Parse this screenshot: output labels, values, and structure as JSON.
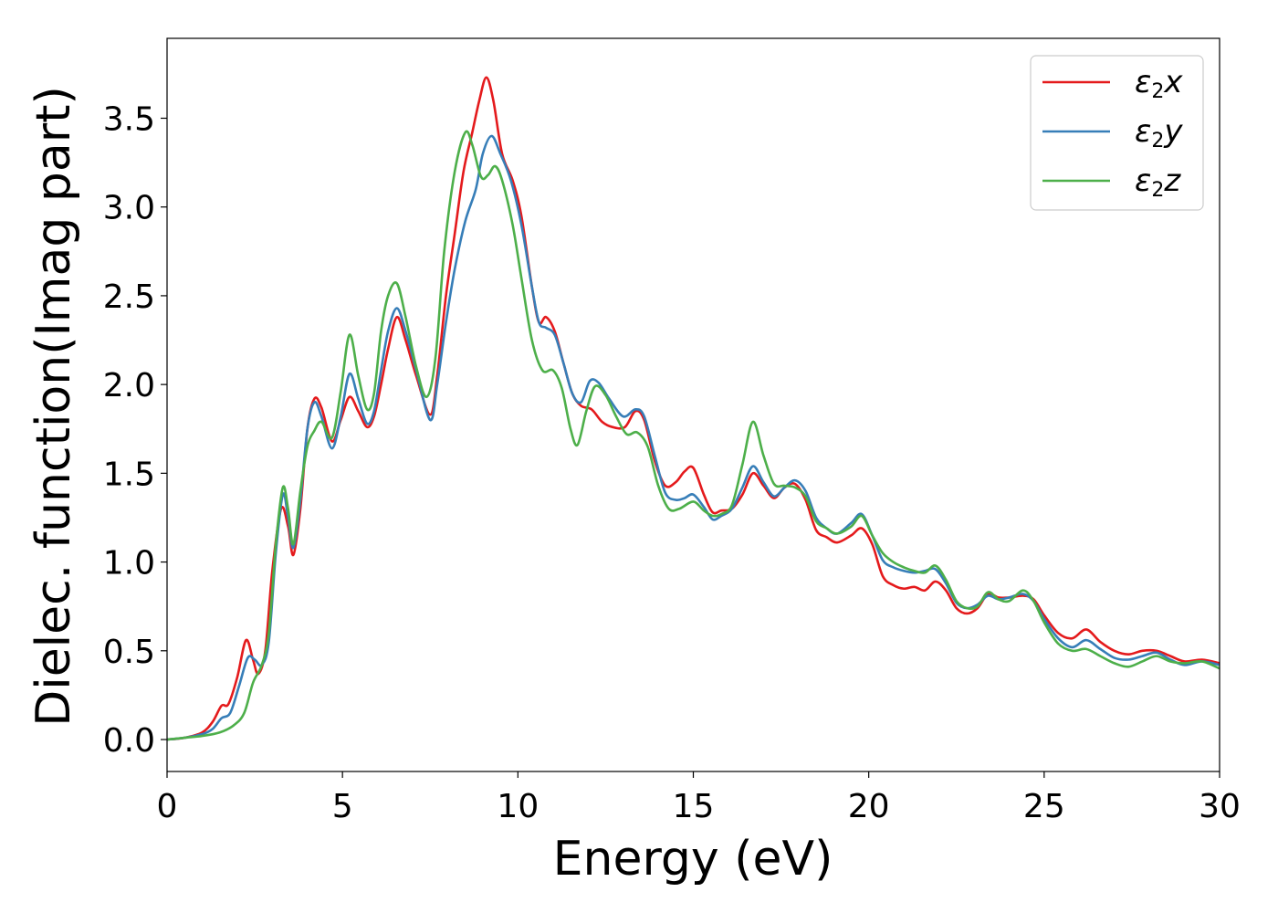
{
  "chart_data": {
    "type": "line",
    "xlabel": "Energy (eV)",
    "ylabel": "Dielec. function(Imag part)",
    "xlim": [
      0,
      30
    ],
    "ylim": [
      -0.18,
      3.95
    ],
    "xticks": [
      0,
      5,
      10,
      15,
      20,
      25,
      30
    ],
    "yticks": [
      0.0,
      0.5,
      1.0,
      1.5,
      2.0,
      2.5,
      3.0,
      3.5
    ],
    "grid": false,
    "legend": "top-right",
    "series": [
      {
        "name_main": "ε",
        "name_sub": "2",
        "name_tail": "x",
        "color": "#e41a1c",
        "points": [
          [
            0,
            0
          ],
          [
            0.5,
            0.01
          ],
          [
            1.0,
            0.04
          ],
          [
            1.3,
            0.1
          ],
          [
            1.55,
            0.19
          ],
          [
            1.75,
            0.2
          ],
          [
            2.0,
            0.35
          ],
          [
            2.25,
            0.56
          ],
          [
            2.45,
            0.45
          ],
          [
            2.6,
            0.37
          ],
          [
            2.8,
            0.5
          ],
          [
            3.0,
            0.95
          ],
          [
            3.25,
            1.3
          ],
          [
            3.45,
            1.2
          ],
          [
            3.6,
            1.04
          ],
          [
            3.8,
            1.3
          ],
          [
            4.0,
            1.75
          ],
          [
            4.2,
            1.92
          ],
          [
            4.4,
            1.87
          ],
          [
            4.7,
            1.68
          ],
          [
            4.95,
            1.8
          ],
          [
            5.2,
            1.93
          ],
          [
            5.45,
            1.85
          ],
          [
            5.7,
            1.76
          ],
          [
            5.9,
            1.82
          ],
          [
            6.1,
            2.0
          ],
          [
            6.3,
            2.2
          ],
          [
            6.55,
            2.38
          ],
          [
            6.8,
            2.25
          ],
          [
            7.1,
            2.05
          ],
          [
            7.5,
            1.83
          ],
          [
            7.7,
            2.05
          ],
          [
            7.95,
            2.5
          ],
          [
            8.2,
            2.85
          ],
          [
            8.45,
            3.2
          ],
          [
            8.7,
            3.42
          ],
          [
            8.9,
            3.6
          ],
          [
            9.1,
            3.73
          ],
          [
            9.3,
            3.6
          ],
          [
            9.55,
            3.3
          ],
          [
            9.85,
            3.15
          ],
          [
            10.1,
            2.95
          ],
          [
            10.4,
            2.55
          ],
          [
            10.6,
            2.35
          ],
          [
            10.8,
            2.38
          ],
          [
            11.05,
            2.3
          ],
          [
            11.3,
            2.12
          ],
          [
            11.55,
            1.95
          ],
          [
            11.8,
            1.88
          ],
          [
            12.1,
            1.86
          ],
          [
            12.4,
            1.79
          ],
          [
            12.7,
            1.76
          ],
          [
            13.05,
            1.76
          ],
          [
            13.35,
            1.85
          ],
          [
            13.6,
            1.8
          ],
          [
            13.9,
            1.57
          ],
          [
            14.2,
            1.43
          ],
          [
            14.5,
            1.45
          ],
          [
            14.75,
            1.51
          ],
          [
            15.0,
            1.53
          ],
          [
            15.3,
            1.38
          ],
          [
            15.55,
            1.28
          ],
          [
            15.8,
            1.29
          ],
          [
            16.1,
            1.3
          ],
          [
            16.4,
            1.38
          ],
          [
            16.7,
            1.5
          ],
          [
            17.0,
            1.43
          ],
          [
            17.3,
            1.36
          ],
          [
            17.6,
            1.42
          ],
          [
            17.9,
            1.44
          ],
          [
            18.2,
            1.35
          ],
          [
            18.5,
            1.18
          ],
          [
            18.8,
            1.14
          ],
          [
            19.1,
            1.11
          ],
          [
            19.5,
            1.15
          ],
          [
            19.8,
            1.19
          ],
          [
            20.1,
            1.1
          ],
          [
            20.4,
            0.92
          ],
          [
            20.7,
            0.87
          ],
          [
            21.0,
            0.85
          ],
          [
            21.3,
            0.86
          ],
          [
            21.6,
            0.84
          ],
          [
            21.9,
            0.89
          ],
          [
            22.2,
            0.84
          ],
          [
            22.5,
            0.74
          ],
          [
            22.8,
            0.71
          ],
          [
            23.1,
            0.74
          ],
          [
            23.4,
            0.82
          ],
          [
            23.7,
            0.8
          ],
          [
            24.0,
            0.8
          ],
          [
            24.4,
            0.81
          ],
          [
            24.7,
            0.79
          ],
          [
            25.0,
            0.7
          ],
          [
            25.4,
            0.6
          ],
          [
            25.8,
            0.57
          ],
          [
            26.2,
            0.62
          ],
          [
            26.6,
            0.55
          ],
          [
            27.0,
            0.5
          ],
          [
            27.4,
            0.48
          ],
          [
            27.8,
            0.5
          ],
          [
            28.2,
            0.5
          ],
          [
            28.6,
            0.47
          ],
          [
            29.0,
            0.44
          ],
          [
            29.5,
            0.45
          ],
          [
            30.0,
            0.43
          ]
        ]
      },
      {
        "name_main": "ε",
        "name_sub": "2",
        "name_tail": "y",
        "color": "#377eb8",
        "points": [
          [
            0,
            0
          ],
          [
            0.5,
            0.01
          ],
          [
            1.0,
            0.03
          ],
          [
            1.3,
            0.06
          ],
          [
            1.55,
            0.12
          ],
          [
            1.8,
            0.15
          ],
          [
            2.05,
            0.3
          ],
          [
            2.3,
            0.46
          ],
          [
            2.5,
            0.45
          ],
          [
            2.7,
            0.42
          ],
          [
            2.9,
            0.55
          ],
          [
            3.1,
            1.05
          ],
          [
            3.3,
            1.38
          ],
          [
            3.45,
            1.25
          ],
          [
            3.6,
            1.08
          ],
          [
            3.8,
            1.35
          ],
          [
            4.0,
            1.75
          ],
          [
            4.2,
            1.9
          ],
          [
            4.4,
            1.82
          ],
          [
            4.7,
            1.64
          ],
          [
            4.95,
            1.82
          ],
          [
            5.2,
            2.06
          ],
          [
            5.45,
            1.92
          ],
          [
            5.7,
            1.78
          ],
          [
            5.9,
            1.85
          ],
          [
            6.1,
            2.08
          ],
          [
            6.3,
            2.3
          ],
          [
            6.55,
            2.43
          ],
          [
            6.8,
            2.3
          ],
          [
            7.1,
            2.08
          ],
          [
            7.5,
            1.8
          ],
          [
            7.7,
            2.0
          ],
          [
            7.95,
            2.35
          ],
          [
            8.2,
            2.65
          ],
          [
            8.5,
            2.92
          ],
          [
            8.8,
            3.1
          ],
          [
            9.0,
            3.3
          ],
          [
            9.25,
            3.4
          ],
          [
            9.5,
            3.3
          ],
          [
            9.8,
            3.15
          ],
          [
            10.1,
            2.9
          ],
          [
            10.4,
            2.55
          ],
          [
            10.6,
            2.35
          ],
          [
            10.8,
            2.32
          ],
          [
            11.05,
            2.28
          ],
          [
            11.3,
            2.12
          ],
          [
            11.55,
            1.95
          ],
          [
            11.8,
            1.9
          ],
          [
            12.05,
            2.02
          ],
          [
            12.3,
            2.01
          ],
          [
            12.6,
            1.92
          ],
          [
            13.0,
            1.82
          ],
          [
            13.35,
            1.86
          ],
          [
            13.6,
            1.82
          ],
          [
            13.9,
            1.6
          ],
          [
            14.2,
            1.39
          ],
          [
            14.5,
            1.35
          ],
          [
            14.75,
            1.36
          ],
          [
            15.0,
            1.38
          ],
          [
            15.3,
            1.31
          ],
          [
            15.55,
            1.24
          ],
          [
            15.8,
            1.26
          ],
          [
            16.1,
            1.3
          ],
          [
            16.4,
            1.42
          ],
          [
            16.7,
            1.54
          ],
          [
            17.0,
            1.45
          ],
          [
            17.3,
            1.37
          ],
          [
            17.6,
            1.42
          ],
          [
            17.9,
            1.46
          ],
          [
            18.2,
            1.4
          ],
          [
            18.5,
            1.25
          ],
          [
            18.8,
            1.19
          ],
          [
            19.1,
            1.16
          ],
          [
            19.5,
            1.22
          ],
          [
            19.8,
            1.27
          ],
          [
            20.1,
            1.15
          ],
          [
            20.4,
            1.01
          ],
          [
            20.7,
            0.97
          ],
          [
            21.0,
            0.95
          ],
          [
            21.3,
            0.94
          ],
          [
            21.6,
            0.95
          ],
          [
            21.9,
            0.96
          ],
          [
            22.2,
            0.88
          ],
          [
            22.5,
            0.77
          ],
          [
            22.8,
            0.74
          ],
          [
            23.1,
            0.76
          ],
          [
            23.4,
            0.81
          ],
          [
            23.7,
            0.79
          ],
          [
            24.0,
            0.8
          ],
          [
            24.4,
            0.82
          ],
          [
            24.7,
            0.78
          ],
          [
            25.0,
            0.68
          ],
          [
            25.4,
            0.57
          ],
          [
            25.8,
            0.52
          ],
          [
            26.2,
            0.56
          ],
          [
            26.6,
            0.51
          ],
          [
            27.0,
            0.46
          ],
          [
            27.4,
            0.45
          ],
          [
            27.8,
            0.47
          ],
          [
            28.2,
            0.49
          ],
          [
            28.6,
            0.45
          ],
          [
            29.0,
            0.42
          ],
          [
            29.5,
            0.44
          ],
          [
            30.0,
            0.42
          ]
        ]
      },
      {
        "name_main": "ε",
        "name_sub": "2",
        "name_tail": "z",
        "color": "#4daf4a",
        "points": [
          [
            0,
            0
          ],
          [
            0.5,
            0.01
          ],
          [
            1.0,
            0.02
          ],
          [
            1.5,
            0.04
          ],
          [
            1.9,
            0.08
          ],
          [
            2.2,
            0.15
          ],
          [
            2.45,
            0.32
          ],
          [
            2.7,
            0.42
          ],
          [
            2.9,
            0.6
          ],
          [
            3.1,
            1.1
          ],
          [
            3.3,
            1.42
          ],
          [
            3.45,
            1.3
          ],
          [
            3.6,
            1.1
          ],
          [
            3.8,
            1.4
          ],
          [
            4.0,
            1.65
          ],
          [
            4.2,
            1.74
          ],
          [
            4.4,
            1.79
          ],
          [
            4.7,
            1.7
          ],
          [
            4.95,
            1.96
          ],
          [
            5.2,
            2.28
          ],
          [
            5.45,
            2.05
          ],
          [
            5.7,
            1.86
          ],
          [
            5.9,
            1.95
          ],
          [
            6.1,
            2.3
          ],
          [
            6.3,
            2.5
          ],
          [
            6.55,
            2.57
          ],
          [
            6.8,
            2.38
          ],
          [
            7.1,
            2.1
          ],
          [
            7.4,
            1.93
          ],
          [
            7.65,
            2.15
          ],
          [
            7.9,
            2.75
          ],
          [
            8.2,
            3.2
          ],
          [
            8.5,
            3.42
          ],
          [
            8.7,
            3.35
          ],
          [
            8.95,
            3.17
          ],
          [
            9.15,
            3.18
          ],
          [
            9.35,
            3.23
          ],
          [
            9.55,
            3.15
          ],
          [
            9.85,
            2.9
          ],
          [
            10.1,
            2.6
          ],
          [
            10.4,
            2.25
          ],
          [
            10.7,
            2.08
          ],
          [
            11.0,
            2.08
          ],
          [
            11.25,
            1.98
          ],
          [
            11.5,
            1.75
          ],
          [
            11.7,
            1.66
          ],
          [
            11.95,
            1.85
          ],
          [
            12.2,
            1.99
          ],
          [
            12.5,
            1.94
          ],
          [
            12.8,
            1.82
          ],
          [
            13.1,
            1.72
          ],
          [
            13.4,
            1.73
          ],
          [
            13.7,
            1.65
          ],
          [
            14.0,
            1.43
          ],
          [
            14.3,
            1.3
          ],
          [
            14.6,
            1.3
          ],
          [
            15.0,
            1.34
          ],
          [
            15.3,
            1.29
          ],
          [
            15.55,
            1.26
          ],
          [
            15.8,
            1.27
          ],
          [
            16.1,
            1.32
          ],
          [
            16.4,
            1.55
          ],
          [
            16.7,
            1.79
          ],
          [
            17.0,
            1.6
          ],
          [
            17.3,
            1.44
          ],
          [
            17.6,
            1.43
          ],
          [
            17.9,
            1.42
          ],
          [
            18.2,
            1.37
          ],
          [
            18.5,
            1.23
          ],
          [
            18.8,
            1.19
          ],
          [
            19.1,
            1.16
          ],
          [
            19.5,
            1.2
          ],
          [
            19.8,
            1.26
          ],
          [
            20.1,
            1.15
          ],
          [
            20.4,
            1.05
          ],
          [
            20.7,
            1.0
          ],
          [
            21.0,
            0.97
          ],
          [
            21.3,
            0.95
          ],
          [
            21.6,
            0.94
          ],
          [
            21.9,
            0.98
          ],
          [
            22.2,
            0.9
          ],
          [
            22.5,
            0.78
          ],
          [
            22.8,
            0.74
          ],
          [
            23.1,
            0.75
          ],
          [
            23.4,
            0.83
          ],
          [
            23.7,
            0.79
          ],
          [
            24.0,
            0.78
          ],
          [
            24.4,
            0.84
          ],
          [
            24.7,
            0.78
          ],
          [
            25.0,
            0.66
          ],
          [
            25.4,
            0.54
          ],
          [
            25.8,
            0.5
          ],
          [
            26.2,
            0.51
          ],
          [
            26.6,
            0.47
          ],
          [
            27.0,
            0.43
          ],
          [
            27.4,
            0.41
          ],
          [
            27.8,
            0.44
          ],
          [
            28.2,
            0.47
          ],
          [
            28.6,
            0.44
          ],
          [
            29.0,
            0.43
          ],
          [
            29.5,
            0.44
          ],
          [
            30.0,
            0.4
          ]
        ]
      }
    ]
  }
}
